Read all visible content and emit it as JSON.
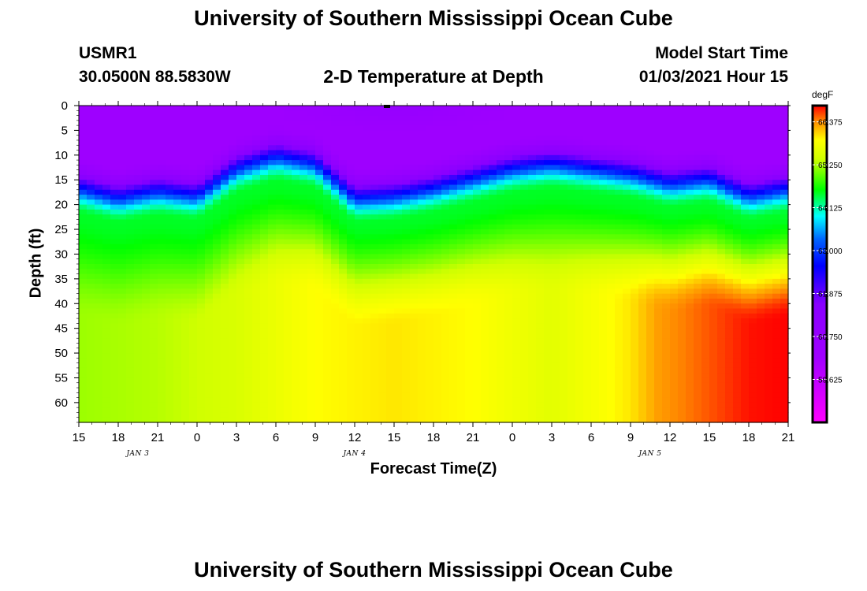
{
  "header": {
    "title": "University of Southern Mississippi Ocean Cube",
    "station_id": "USMR1",
    "station_coords": "30.0500N 88.5830W",
    "subtitle": "2-D Temperature at Depth",
    "model_start_label": "Model Start Time",
    "model_start_value": "01/03/2021 Hour 15"
  },
  "footer": {
    "title": "University of Southern Mississippi Ocean Cube"
  },
  "chart_data": {
    "type": "heatmap",
    "title": "2-D Temperature at Depth",
    "xlabel": "Forecast Time(Z)",
    "ylabel": "Depth (ft)",
    "x_tick_labels": [
      "15",
      "18",
      "21",
      "0",
      "3",
      "6",
      "9",
      "12",
      "15",
      "18",
      "21",
      "0",
      "3",
      "6",
      "9",
      "12",
      "15",
      "18",
      "21"
    ],
    "date_labels": [
      {
        "label": "JAN 3",
        "tick_index": 1.5
      },
      {
        "label": "JAN 4",
        "tick_index": 7
      },
      {
        "label": "JAN 5",
        "tick_index": 14.5
      }
    ],
    "y_ticks": [
      0,
      5,
      10,
      15,
      20,
      25,
      30,
      35,
      40,
      45,
      50,
      55,
      60
    ],
    "ylim": [
      0,
      64
    ],
    "xlim_hours": [
      0,
      54
    ],
    "colorbar": {
      "unit": "degF",
      "range": [
        58.5,
        66.8
      ],
      "tick_values": [
        66.375,
        65.25,
        64.125,
        63.0,
        61.875,
        60.75,
        59.625
      ],
      "tick_labels": [
        "66.375",
        "65.250",
        "64.125",
        "63.000",
        "61.875",
        "60.750",
        "59.625"
      ],
      "color_stops": [
        {
          "v": 58.5,
          "c": "#ff00ff"
        },
        {
          "v": 60.2,
          "c": "#a000ff"
        },
        {
          "v": 61.6,
          "c": "#8800ff"
        },
        {
          "v": 62.6,
          "c": "#0000ff"
        },
        {
          "v": 63.3,
          "c": "#0066ff"
        },
        {
          "v": 63.9,
          "c": "#00ffff"
        },
        {
          "v": 64.6,
          "c": "#00ff00"
        },
        {
          "v": 65.4,
          "c": "#d0ff00"
        },
        {
          "v": 65.9,
          "c": "#ffff00"
        },
        {
          "v": 66.4,
          "c": "#ff8800"
        },
        {
          "v": 66.8,
          "c": "#ff0000"
        }
      ]
    },
    "thermocline": {
      "hours": [
        0,
        3,
        6,
        9,
        12,
        15,
        18,
        21,
        24,
        27,
        30,
        33,
        36,
        39,
        42,
        45,
        48,
        51,
        54
      ],
      "depth_ft": [
        17,
        19,
        17.5,
        18.5,
        13,
        10.5,
        12,
        19,
        18.5,
        17,
        15,
        13,
        12,
        13,
        14,
        16,
        15,
        18.5,
        17
      ]
    },
    "deep_layer": {
      "hours": [
        0,
        6,
        12,
        18,
        24,
        30,
        36,
        42,
        44,
        48,
        51,
        54
      ],
      "temp_degF": [
        65.2,
        65.3,
        65.5,
        65.9,
        66.0,
        65.9,
        65.6,
        66.0,
        66.3,
        66.55,
        66.75,
        66.8
      ]
    },
    "surface_temp_degF": 60.3,
    "mid_temp_degF": 64.5
  }
}
